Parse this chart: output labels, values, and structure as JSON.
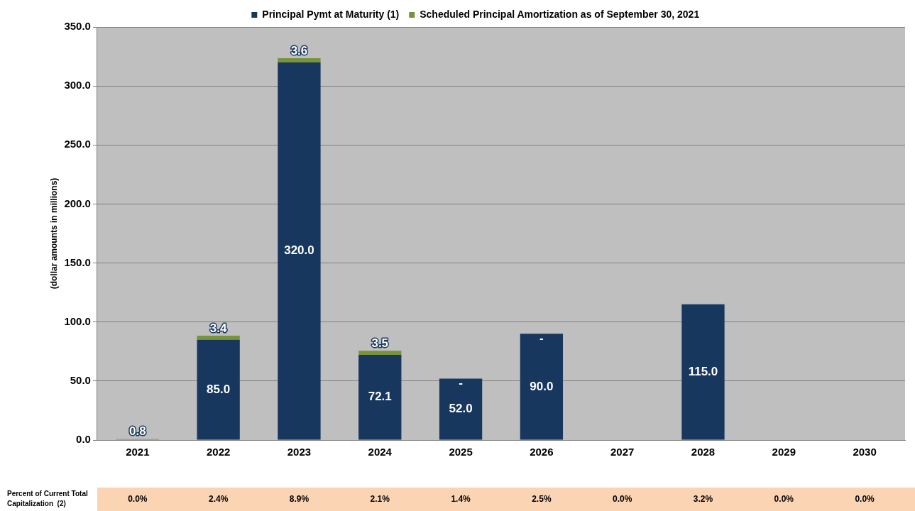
{
  "chart_data": {
    "type": "bar",
    "stacked": true,
    "ylabel": "(dollar amounts in millions)",
    "categories": [
      "2021",
      "2022",
      "2023",
      "2024",
      "2025",
      "2026",
      "2027",
      "2028",
      "2029",
      "2030"
    ],
    "series": [
      {
        "name": "Principal Pymt at Maturity (1)",
        "color": "#17375e",
        "values": [
          null,
          85.0,
          320.0,
          72.1,
          52.0,
          90.0,
          null,
          115.0,
          null,
          null
        ],
        "value_labels": [
          null,
          "85.0",
          "320.0",
          "72.1",
          "52.0",
          "90.0",
          null,
          "115.0",
          null,
          null
        ]
      },
      {
        "name": "Scheduled Principal Amortization as of September 30, 2021",
        "color": "#77933c",
        "values": [
          0.8,
          3.4,
          3.6,
          3.5,
          0,
          0,
          null,
          null,
          null,
          null
        ],
        "value_labels": [
          "0.8",
          "3.4",
          "3.6",
          "3.5",
          "-",
          "-",
          null,
          null,
          null,
          null
        ]
      }
    ],
    "ylim": [
      0,
      350
    ],
    "yticks": [
      {
        "value": 0,
        "label": "0.0"
      },
      {
        "value": 50,
        "label": "50.0"
      },
      {
        "value": 100,
        "label": "100.0"
      },
      {
        "value": 150,
        "label": "150.0"
      },
      {
        "value": 200,
        "label": "200.0"
      },
      {
        "value": 250,
        "label": "250.0"
      },
      {
        "value": 300,
        "label": "300.0"
      },
      {
        "value": 350,
        "label": "350.0"
      }
    ],
    "grid": "y",
    "legend": "top",
    "annotations": [
      "Percent of Current Total Capitalization  (2)",
      "0.0%",
      "2.4%",
      "8.9%",
      "2.1%",
      "1.4%",
      "2.5%",
      "0.0%",
      "3.2%",
      "0.0%",
      "0.0%"
    ]
  }
}
